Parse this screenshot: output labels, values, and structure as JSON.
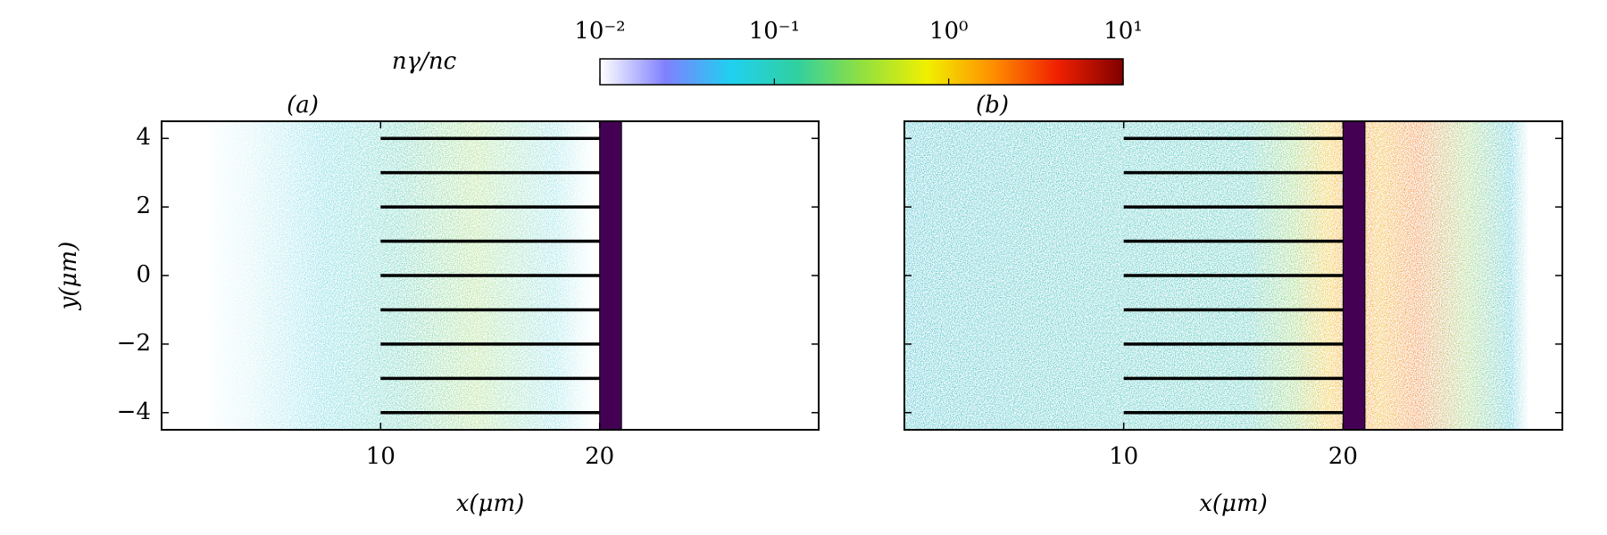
{
  "chart_data": [
    {
      "type": "heatmap",
      "panel_label": "(a)",
      "xlabel": "x(μm)",
      "ylabel": "y(μm)",
      "xlim": [
        0,
        30
      ],
      "ylim": [
        -4.5,
        4.5
      ],
      "xticks": [
        10,
        20
      ],
      "yticks": [
        {
          "value": -4,
          "label": "−4"
        },
        {
          "value": -2,
          "label": "−2"
        },
        0,
        2,
        4
      ],
      "ytick_labels": true,
      "lines": {
        "x": [
          10,
          20
        ],
        "y": [
          -4,
          -3,
          -2,
          -1,
          0,
          1,
          2,
          3,
          4
        ],
        "color": "#000000"
      },
      "slab": {
        "x": [
          20,
          21
        ],
        "color": "#440154"
      }
    },
    {
      "type": "heatmap",
      "panel_label": "(b)",
      "xlabel": "x(μm)",
      "xlim": [
        0,
        30
      ],
      "ylim": [
        -4.5,
        4.5
      ],
      "xticks": [
        10,
        20
      ],
      "yticks": [
        {
          "value": -4,
          "label": "−4"
        },
        {
          "value": -2,
          "label": "−2"
        },
        0,
        2,
        4
      ],
      "ytick_labels": false,
      "lines": {
        "x": [
          10,
          20
        ],
        "y": [
          -4,
          -3,
          -2,
          -1,
          0,
          1,
          2,
          3,
          4
        ],
        "color": "#000000"
      },
      "slab": {
        "x": [
          20,
          21
        ],
        "color": "#440154"
      }
    },
    {
      "type": "colorbar",
      "label": "nγ/nc",
      "lim": [
        0.01,
        10
      ],
      "log": true,
      "ticks": [
        {
          "value": 0.01,
          "label": "10⁻²"
        },
        {
          "value": 0.1,
          "label": "10⁻¹"
        },
        {
          "value": 1,
          "label": "10⁰"
        },
        {
          "value": 10,
          "label": "10¹"
        }
      ],
      "colors": [
        "#ffffff",
        "#8080ff",
        "#20d0f0",
        "#30d0a0",
        "#90e040",
        "#f0f000",
        "#ff9000",
        "#f02000",
        "#800000"
      ]
    }
  ]
}
